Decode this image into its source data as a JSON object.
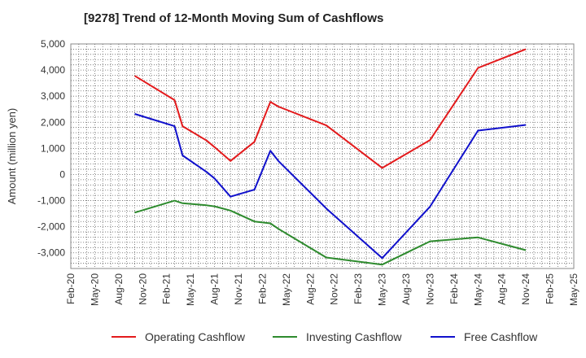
{
  "chart_data": {
    "type": "line",
    "title": "[9278]  Trend of 12-Month Moving Sum of Cashflows",
    "ylabel": "Amount (million yen)",
    "xlabel": "",
    "ylim": [
      -3600,
      5000
    ],
    "yticks": [
      5000,
      4000,
      3000,
      2000,
      1000,
      0,
      -1000,
      -2000,
      -3000
    ],
    "ytick_labels": [
      "5,000",
      "4,000",
      "3,000",
      "2,000",
      "1,000",
      "0",
      "-1,000",
      "-2,000",
      "-3,000"
    ],
    "xticks": [
      "Feb-20",
      "May-20",
      "Aug-20",
      "Nov-20",
      "Feb-21",
      "May-21",
      "Aug-21",
      "Nov-21",
      "Feb-22",
      "May-22",
      "Aug-22",
      "Nov-22",
      "Feb-23",
      "May-23",
      "Aug-23",
      "Nov-23",
      "Feb-24",
      "May-24",
      "Aug-24",
      "Nov-24",
      "Feb-25",
      "May-25"
    ],
    "x": [
      "Oct-20",
      "Mar-21",
      "Apr-21",
      "Jul-21",
      "Aug-21",
      "Oct-21",
      "Jan-22",
      "Mar-22",
      "Apr-22",
      "Oct-22",
      "May-23",
      "Nov-23",
      "May-24",
      "Nov-24"
    ],
    "grid": true,
    "legend_position": "bottom",
    "series": [
      {
        "name": "Operating Cashflow",
        "color": "#e31a1c",
        "values": [
          3780,
          2850,
          1850,
          1300,
          1050,
          520,
          1250,
          2780,
          2600,
          1880,
          250,
          1320,
          4080,
          4800
        ]
      },
      {
        "name": "Investing Cashflow",
        "color": "#2e8b2e",
        "values": [
          -1460,
          -1000,
          -1100,
          -1180,
          -1220,
          -1380,
          -1800,
          -1870,
          -2080,
          -3180,
          -3450,
          -2560,
          -2410,
          -2900
        ]
      },
      {
        "name": "Free Cashflow",
        "color": "#1010cc",
        "values": [
          2320,
          1850,
          730,
          100,
          -150,
          -850,
          -580,
          910,
          520,
          -1300,
          -3200,
          -1230,
          1680,
          1900
        ]
      }
    ]
  }
}
